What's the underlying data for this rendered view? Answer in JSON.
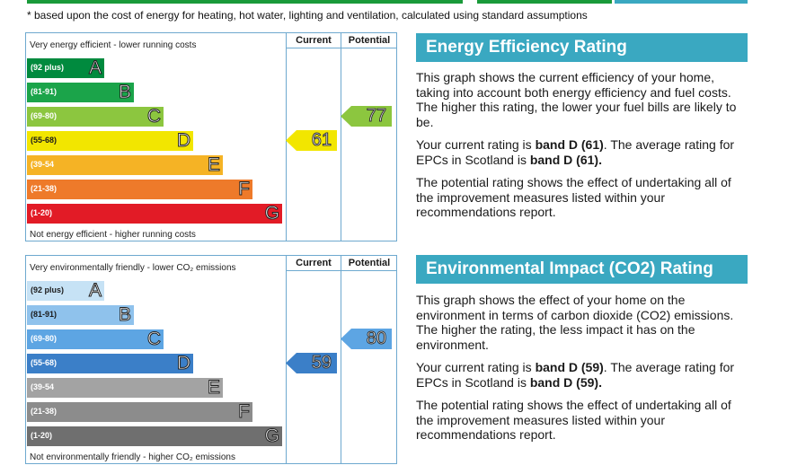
{
  "colors": {
    "header_bar": "#3aa8c1",
    "grid_line": "#6ea9cf",
    "strip_green": "#1a9a3a",
    "strip_teal": "#3aa8c1"
  },
  "footnote": "* based upon the cost of energy for heating, hot water, lighting and ventilation, calculated using standard assumptions",
  "energy": {
    "chart": {
      "col_current": "Current",
      "col_potential": "Potential",
      "top_label": "Very energy efficient - lower running costs",
      "bottom_label": "Not energy efficient - higher running costs",
      "bands": [
        {
          "range": "(92 plus)",
          "letter": "A",
          "color": "#008a3e"
        },
        {
          "range": "(81-91)",
          "letter": "B",
          "color": "#1ba44a"
        },
        {
          "range": "(69-80)",
          "letter": "C",
          "color": "#8cc63f"
        },
        {
          "range": "(55-68)",
          "letter": "D",
          "color": "#f2e600"
        },
        {
          "range": "(39-54",
          "letter": "E",
          "color": "#f5b325"
        },
        {
          "range": "(21-38)",
          "letter": "F",
          "color": "#ee7a2a"
        },
        {
          "range": "(1-20)",
          "letter": "G",
          "color": "#e21b26"
        }
      ],
      "current": {
        "value": "61",
        "band": "D",
        "color": "#f2e600"
      },
      "potential": {
        "value": "77",
        "band": "C",
        "color": "#8cc63f"
      }
    },
    "panel": {
      "title": "Energy Efficiency Rating",
      "p1": "This graph shows the current efficiency of your home, taking into account both energy efficiency and fuel costs. The higher this rating, the lower your fuel bills are likely to be.",
      "p2_pre": "Your current rating is ",
      "p2_bold1": "band D (61)",
      "p2_mid": ". The average rating for EPCs in Scotland is ",
      "p2_bold2": "band D (61).",
      "p3": "The potential rating shows the effect of undertaking all of the improvement measures listed within your recommendations report."
    }
  },
  "environment": {
    "chart": {
      "col_current": "Current",
      "col_potential": "Potential",
      "top_label": "Very environmentally friendly - lower CO₂ emissions",
      "bottom_label": "Not environmentally friendly - higher CO₂ emissions",
      "bands": [
        {
          "range": "(92 plus)",
          "letter": "A",
          "color": "#c6e2f5"
        },
        {
          "range": "(81-91)",
          "letter": "B",
          "color": "#8fc2ec"
        },
        {
          "range": "(69-80)",
          "letter": "C",
          "color": "#5da5e3"
        },
        {
          "range": "(55-68)",
          "letter": "D",
          "color": "#3b7fc8"
        },
        {
          "range": "(39-54",
          "letter": "E",
          "color": "#a3a3a3"
        },
        {
          "range": "(21-38)",
          "letter": "F",
          "color": "#8c8c8c"
        },
        {
          "range": "(1-20)",
          "letter": "G",
          "color": "#6f6f6f"
        }
      ],
      "current": {
        "value": "59",
        "band": "D",
        "color": "#3b7fc8"
      },
      "potential": {
        "value": "80",
        "band": "C",
        "color": "#5da5e3"
      }
    },
    "panel": {
      "title": "Environmental Impact (CO2) Rating",
      "p1": "This graph shows the effect of your home on the environment in terms of carbon dioxide (CO2) emissions. The higher the rating, the less impact it has on the environment.",
      "p2_pre": "Your current rating is ",
      "p2_bold1": "band D (59)",
      "p2_mid": ". The average rating for EPCs in Scotland is ",
      "p2_bold2": "band D (59).",
      "p3": "The potential rating shows the effect of undertaking all of the improvement measures listed within your recommendations report."
    }
  }
}
